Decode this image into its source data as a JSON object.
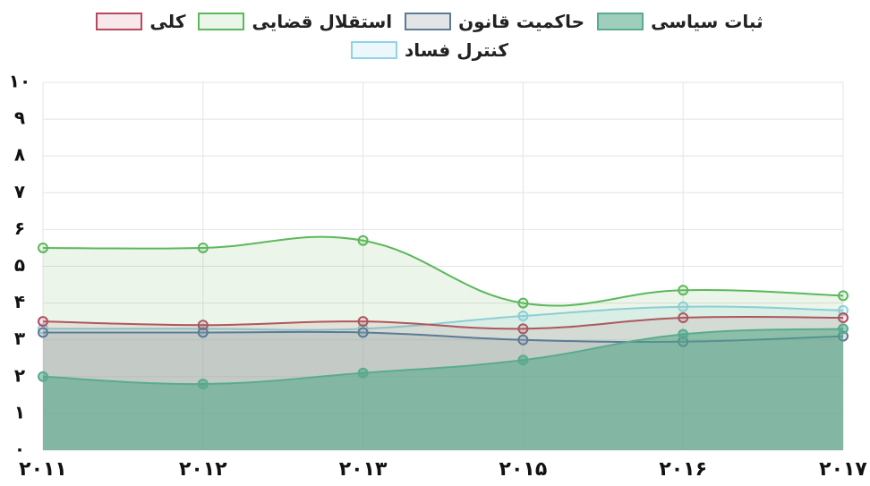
{
  "chart_data": {
    "type": "area",
    "categories": [
      "۲۰۱۱",
      "۲۰۱۲",
      "۲۰۱۳",
      "۲۰۱۵",
      "۲۰۱۶",
      "۲۰۱۷"
    ],
    "series": [
      {
        "name": "ثبات سیاسی",
        "color": "#5aab90",
        "fill": "rgba(80,165,135,0.55)",
        "values": [
          2.0,
          1.8,
          2.1,
          2.45,
          3.15,
          3.3
        ]
      },
      {
        "name": "حاکمیت قانون",
        "color": "#5b7b96",
        "fill": "rgba(160,165,170,0.3)",
        "values": [
          3.2,
          3.2,
          3.2,
          3.0,
          2.95,
          3.1
        ]
      },
      {
        "name": "استقلال قضایی",
        "color": "#5cb85c",
        "fill": "rgba(110,185,100,0.14)",
        "values": [
          5.5,
          5.5,
          5.7,
          4.0,
          4.35,
          4.2
        ]
      },
      {
        "name": "کلی",
        "color": "#b8475f",
        "fill": "rgba(190,80,100,0.13)",
        "values": [
          3.5,
          3.4,
          3.5,
          3.3,
          3.6,
          3.6
        ]
      },
      {
        "name": "کنترل فساد",
        "color": "#8fd3e8",
        "fill": "rgba(143,211,232,0.18)",
        "values": [
          3.3,
          3.3,
          3.3,
          3.65,
          3.9,
          3.8
        ]
      }
    ],
    "ylim": [
      0,
      10
    ],
    "yticks": [
      {
        "value": 0,
        "label": "۰"
      },
      {
        "value": 1,
        "label": "۱"
      },
      {
        "value": 2,
        "label": "۲"
      },
      {
        "value": 3,
        "label": "۳"
      },
      {
        "value": 4,
        "label": "۴"
      },
      {
        "value": 5,
        "label": "۵"
      },
      {
        "value": 6,
        "label": "۶"
      },
      {
        "value": 7,
        "label": "۷"
      },
      {
        "value": 8,
        "label": "۸"
      },
      {
        "value": 9,
        "label": "۹"
      },
      {
        "value": 10,
        "label": "۱۰"
      }
    ],
    "grid": true,
    "legend": "top"
  }
}
